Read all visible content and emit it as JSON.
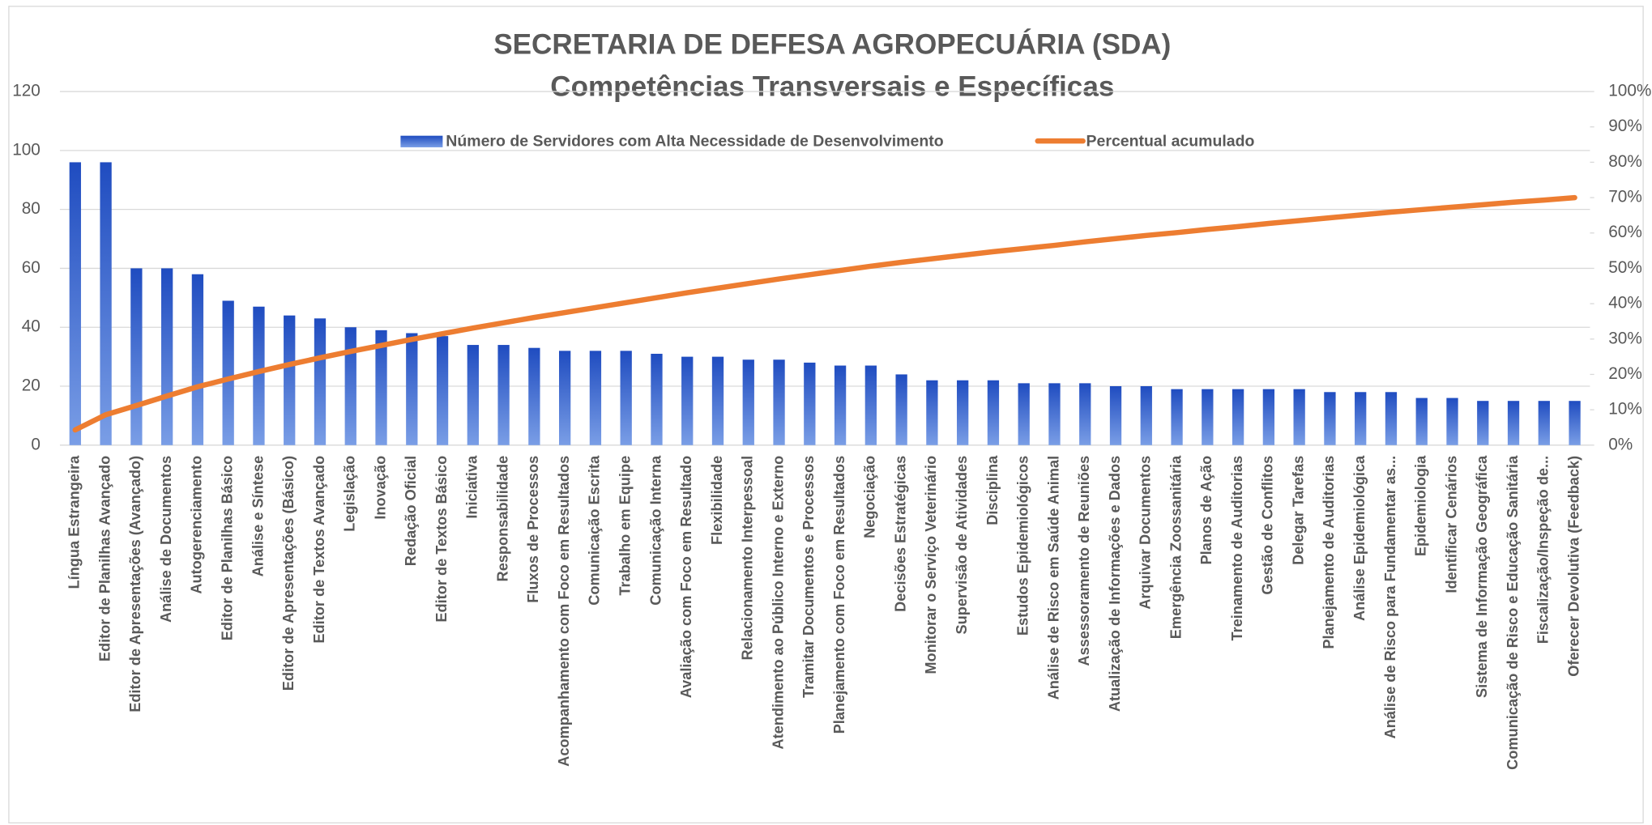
{
  "chart_data": {
    "type": "bar_line",
    "title": "SECRETARIA DE DEFESA AGROPECUÁRIA (SDA)",
    "subtitle": "Competências Transversais e Específicas",
    "categories": [
      "Língua Estrangeira",
      "Editor de Planilhas Avançado",
      "Editor de Apresentações (Avançado)",
      "Análise de Documentos",
      "Autogerenciamento",
      "Editor de Planilhas Básico",
      "Análise e Síntese",
      "Editor de Apresentações (Básico)",
      "Editor de Textos Avançado",
      "Legislação",
      "Inovação",
      "Redação Oficial",
      "Editor de Textos Básico",
      "Iniciativa",
      "Responsabilidade",
      "Fluxos de Processos",
      "Acompanhamento com Foco em Resultados",
      "Comunicação Escrita",
      "Trabalho em Equipe",
      "Comunicação Interna",
      "Avaliação com Foco em Resultado",
      "Flexibilidade",
      "Relacionamento Interpessoal",
      "Atendimento ao Público Interno e Externo",
      "Tramitar Documentos e Processos",
      "Planejamento com Foco em Resultados",
      "Negociação",
      "Decisões Estratégicas",
      "Monitorar o Serviço Veterinário",
      "Supervisão de Atividades",
      "Disciplina",
      "Estudos Epidemiológicos",
      "Análise de Risco em Saúde Animal",
      "Assessoramento de Reuniões",
      "Atualização de Informações e Dados",
      "Arquivar Documentos",
      "Emergência Zoossanitária",
      "Planos de Ação",
      "Treinamento de Auditorias",
      "Gestão de Conflitos",
      "Delegar Tarefas",
      "Planejamento de Auditorias",
      "Análise Epidemiológica",
      "Análise de Risco para Fundamentar as...",
      "Epidemiologia",
      "Identificar Cenários",
      "Sistema de Informação Geográfica",
      "Comunicação de Risco e Educação Sanitária",
      "Fiscalização/Inspeção de...",
      "Oferecer Devolutiva (Feedback)"
    ],
    "series": [
      {
        "name": "Número de Servidores com Alta Necessidade de Desenvolvimento",
        "color": "#2e5fd0",
        "type": "bar",
        "values": [
          96,
          96,
          60,
          60,
          58,
          49,
          47,
          44,
          43,
          40,
          39,
          38,
          37,
          34,
          34,
          33,
          32,
          32,
          32,
          31,
          30,
          30,
          29,
          29,
          28,
          27,
          27,
          24,
          22,
          22,
          22,
          21,
          21,
          21,
          20,
          20,
          19,
          19,
          19,
          19,
          19,
          18,
          18,
          18,
          16,
          16,
          15,
          15,
          15,
          15
        ]
      },
      {
        "name": "Percentual acumulado",
        "color": "#ed7d31",
        "type": "line",
        "axis": "y2",
        "values": [
          4.3,
          8.6,
          11.2,
          13.9,
          16.5,
          18.7,
          20.8,
          22.8,
          24.7,
          26.5,
          28.2,
          29.9,
          31.5,
          33.1,
          34.6,
          36.1,
          37.5,
          38.9,
          40.3,
          41.7,
          43.1,
          44.4,
          45.7,
          47.0,
          48.2,
          49.4,
          50.6,
          51.7,
          52.7,
          53.7,
          54.7,
          55.6,
          56.5,
          57.5,
          58.4,
          59.3,
          60.1,
          61.0,
          61.8,
          62.7,
          63.5,
          64.3,
          65.1,
          65.9,
          66.6,
          67.3,
          68.0,
          68.7,
          69.3,
          70.0
        ]
      }
    ],
    "ylim": [
      0,
      120
    ],
    "yticks": [
      0,
      20,
      40,
      60,
      80,
      100,
      120
    ],
    "y2lim": [
      0,
      100
    ],
    "y2ticks": [
      {
        "value": 0,
        "label": "0%"
      },
      {
        "value": 10,
        "label": "10%"
      },
      {
        "value": 20,
        "label": "20%"
      },
      {
        "value": 30,
        "label": "30%"
      },
      {
        "value": 40,
        "label": "40%"
      },
      {
        "value": 50,
        "label": "50%"
      },
      {
        "value": 60,
        "label": "60%"
      },
      {
        "value": 70,
        "label": "70%"
      },
      {
        "value": 80,
        "label": "80%"
      },
      {
        "value": 90,
        "label": "90%"
      },
      {
        "value": 100,
        "label": "100%"
      }
    ],
    "grid": true,
    "legend": "top"
  }
}
